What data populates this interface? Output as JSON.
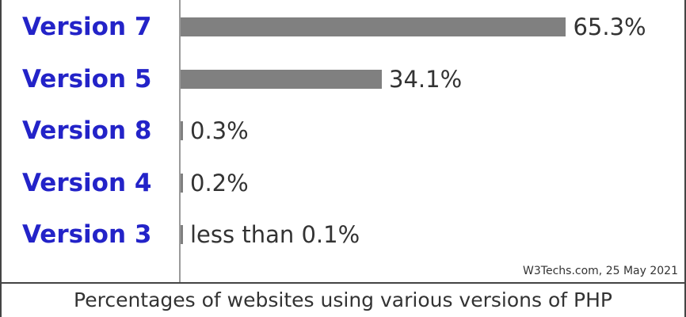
{
  "chart_data": {
    "type": "bar",
    "orientation": "horizontal",
    "categories": [
      "Version 7",
      "Version 5",
      "Version 8",
      "Version 4",
      "Version 3"
    ],
    "values": [
      65.3,
      34.1,
      0.3,
      0.2,
      0.05
    ],
    "value_labels": [
      "65.3%",
      "34.1%",
      "0.3%",
      "0.2%",
      "less than 0.1%"
    ],
    "xlim": [
      0,
      100
    ],
    "grid": false,
    "colors": {
      "bar": "#808080",
      "category_text": "#2323c8",
      "value_text": "#333333"
    }
  },
  "source": "W3Techs.com, 25 May 2021",
  "caption": "Percentages of websites using various versions of PHP"
}
